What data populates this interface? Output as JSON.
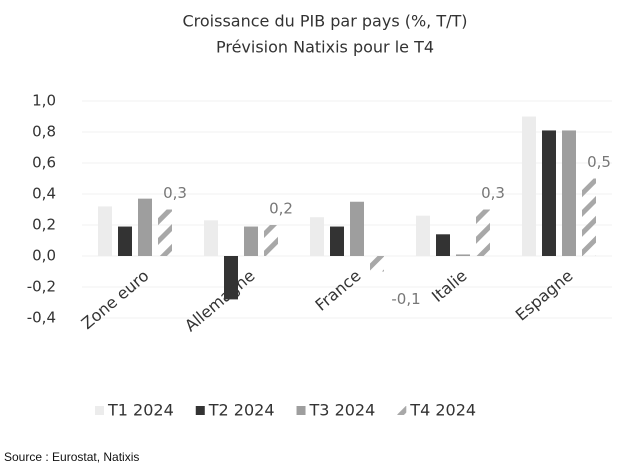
{
  "chart_data": {
    "type": "bar",
    "title": "Croissance du PIB par pays (%, T/T)",
    "subtitle": "Prévision Natixis pour le T4",
    "source": "Source : Eurostat, Natixis",
    "categories": [
      "Zone euro",
      "Allemagne",
      "France",
      "Italie",
      "Espagne"
    ],
    "series": [
      {
        "name": "T1 2024",
        "color": "#ececec",
        "values": [
          0.32,
          0.23,
          0.25,
          0.26,
          0.9
        ]
      },
      {
        "name": "T2 2024",
        "color": "#333333",
        "values": [
          0.19,
          -0.28,
          0.19,
          0.14,
          0.81
        ]
      },
      {
        "name": "T3 2024",
        "color": "#9e9e9e",
        "values": [
          0.37,
          0.19,
          0.35,
          0.01,
          0.81
        ]
      },
      {
        "name": "T4 2024",
        "color": "#a8a8a8",
        "hatch": true,
        "values": [
          0.3,
          0.2,
          -0.1,
          0.3,
          0.5
        ],
        "value_labels": [
          "0,3",
          "0,2",
          "-0,1",
          "0,3",
          "0,5"
        ]
      }
    ],
    "ylim": [
      -0.4,
      1.0
    ],
    "yticks": [
      {
        "value": -0.4,
        "label": "-0,4"
      },
      {
        "value": -0.2,
        "label": "-0,2"
      },
      {
        "value": 0,
        "label": "0,0"
      },
      {
        "value": 0.2,
        "label": "0,2"
      },
      {
        "value": 0.4,
        "label": "0,4"
      },
      {
        "value": 0.6,
        "label": "0,6"
      },
      {
        "value": 0.8,
        "label": "0,8"
      },
      {
        "value": 1.0,
        "label": "1,0"
      }
    ],
    "grid": true,
    "legend": "bottom"
  }
}
